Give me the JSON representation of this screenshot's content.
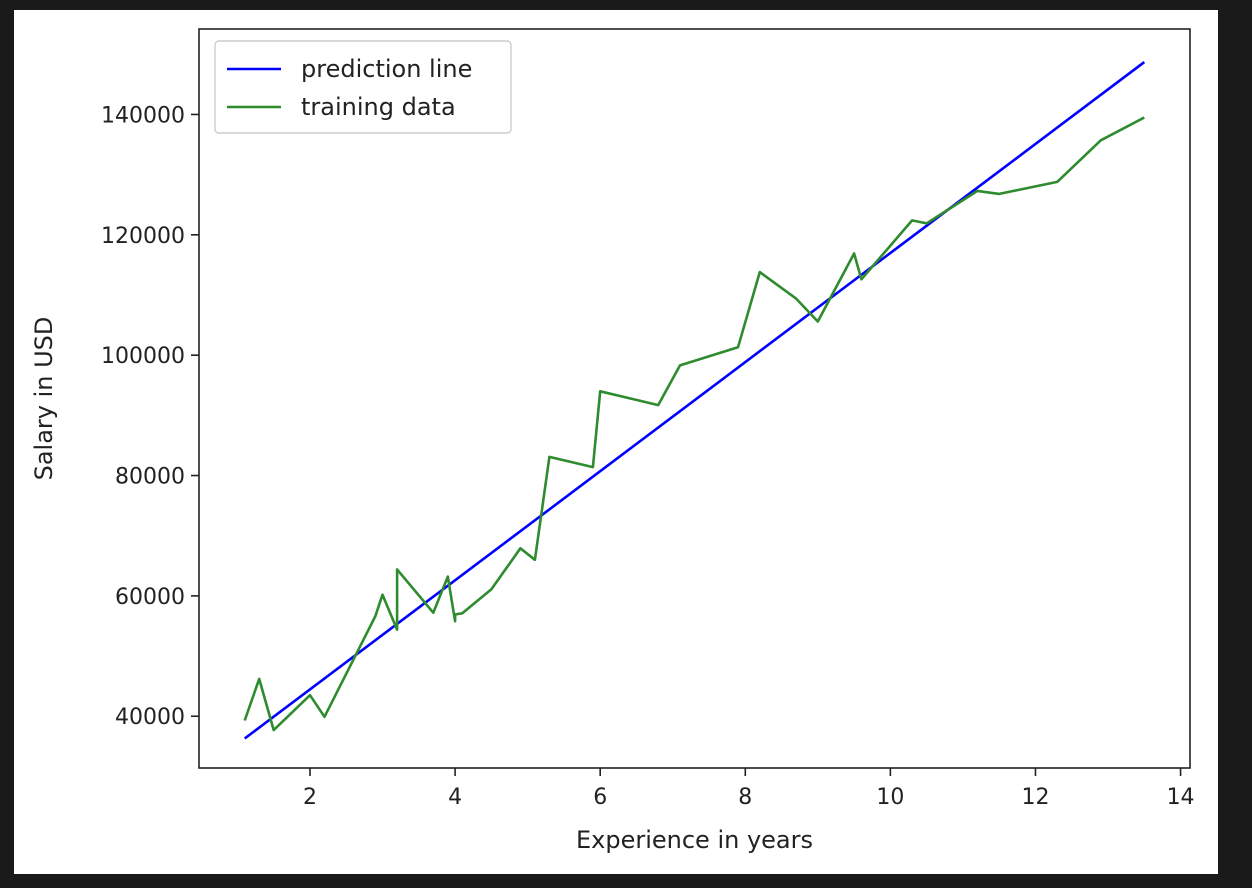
{
  "chart_data": {
    "type": "line",
    "title": "",
    "xlabel": "Experience in years",
    "ylabel": "Salary in USD",
    "xlim": [
      0.47,
      14.13
    ],
    "ylim": [
      31400,
      154200
    ],
    "xticks": [
      2,
      4,
      6,
      8,
      10,
      12,
      14
    ],
    "yticks": [
      40000,
      60000,
      80000,
      100000,
      120000,
      140000
    ],
    "grid": false,
    "legend_position": "top-left",
    "series": [
      {
        "name": "prediction line",
        "color": "#0000ff",
        "x": [
          1.1,
          13.5
        ],
        "y": [
          36300,
          148700
        ]
      },
      {
        "name": "training data",
        "color": "#2e8b2e",
        "x": [
          1.1,
          1.3,
          1.5,
          2.0,
          2.2,
          2.9,
          3.0,
          3.2,
          3.2,
          3.7,
          3.9,
          4.0,
          4.0,
          4.1,
          4.5,
          4.9,
          5.1,
          5.3,
          5.9,
          6.0,
          6.8,
          7.1,
          7.9,
          8.2,
          8.7,
          9.0,
          9.5,
          9.6,
          10.3,
          10.5,
          11.2,
          11.5,
          12.3,
          12.9,
          13.5
        ],
        "y": [
          39300,
          46200,
          37700,
          43500,
          39900,
          56600,
          60200,
          54400,
          64400,
          57200,
          63200,
          55800,
          56900,
          57100,
          61100,
          67900,
          66000,
          83100,
          81400,
          94000,
          91700,
          98300,
          101300,
          113800,
          109400,
          105600,
          116900,
          112600,
          122400,
          121900,
          127300,
          126800,
          128800,
          135700,
          139500
        ]
      }
    ]
  }
}
